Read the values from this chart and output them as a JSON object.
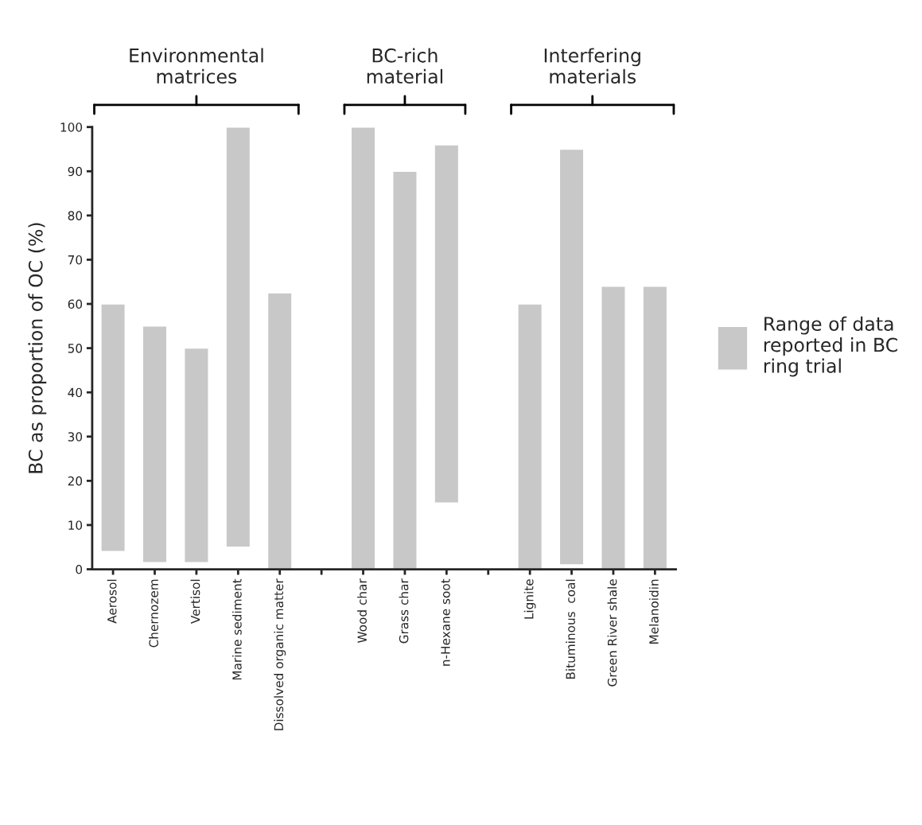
{
  "chart_data": {
    "type": "bar",
    "ylabel": "BC as proportion of OC (%)",
    "categories": [
      "Aerosol",
      "Chernozem",
      "Vertisol",
      "Marine sediment",
      "Dissolved organic matter",
      null,
      "Wood char",
      "Grass char",
      "n-Hexane soot",
      null,
      "Lignite",
      "Bituminous  coal",
      "Green River shale",
      "Melanoidin"
    ],
    "series": [
      {
        "name": "Range of data\nreported in BC\nring trial",
        "color": "#c8c8c8",
        "base": [
          4,
          1.5,
          1.5,
          5,
          0,
          null,
          0,
          0,
          15,
          null,
          0,
          1,
          0,
          0
        ],
        "values": [
          56,
          53.5,
          48.5,
          95,
          62.5,
          null,
          100,
          90,
          81,
          null,
          60,
          94,
          64,
          64
        ]
      }
    ],
    "annotations": [
      "Environmental\nmatrices",
      "BC-rich\nmaterial",
      "Interfering\nmaterials"
    ],
    "ylim": [
      0,
      100
    ],
    "yticks": [
      0,
      10,
      20,
      30,
      40,
      50,
      60,
      70,
      80,
      90,
      100
    ],
    "grid": false,
    "legend": "right"
  }
}
